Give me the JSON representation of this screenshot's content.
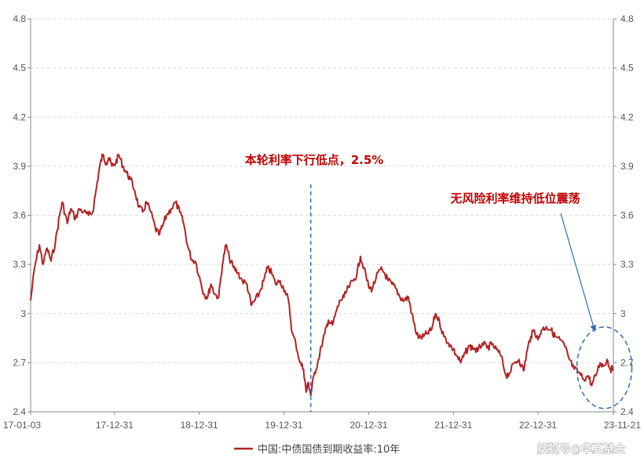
{
  "chart_data": {
    "type": "line",
    "title": "",
    "xlabel": "",
    "ylabel": "",
    "ylim": [
      2.4,
      4.8
    ],
    "y_ticks": [
      "2.4",
      "2.7",
      "3",
      "3.3",
      "3.6",
      "3.9",
      "4.2",
      "4.5",
      "4.8"
    ],
    "y_tick_values": [
      2.4,
      2.7,
      3.0,
      3.3,
      3.6,
      3.9,
      4.2,
      4.5,
      4.8
    ],
    "xlim": [
      "2017-01-03",
      "2023-11-21"
    ],
    "x_ticks": [
      {
        "label": "17-01-03",
        "date": "2017-01-03"
      },
      {
        "label": "17-12-31",
        "date": "2017-12-31"
      },
      {
        "label": "18-12-31",
        "date": "2018-12-31"
      },
      {
        "label": "19-12-31",
        "date": "2019-12-31"
      },
      {
        "label": "20-12-31",
        "date": "2020-12-31"
      },
      {
        "label": "21-12-31",
        "date": "2021-12-31"
      },
      {
        "label": "22-12-31",
        "date": "2022-12-31"
      },
      {
        "label": "23-11-21",
        "date": "2023-11-21"
      }
    ],
    "grid": true,
    "dual_axis": true,
    "legend": "bottom-center",
    "series": [
      {
        "name": "中国:中债国债到期收益率:10年",
        "color": "#b22222",
        "points": [
          [
            "2017-01-03",
            3.08
          ],
          [
            "2017-01-20",
            3.28
          ],
          [
            "2017-02-10",
            3.42
          ],
          [
            "2017-02-25",
            3.3
          ],
          [
            "2017-03-15",
            3.4
          ],
          [
            "2017-04-01",
            3.32
          ],
          [
            "2017-04-20",
            3.44
          ],
          [
            "2017-05-08",
            3.6
          ],
          [
            "2017-05-20",
            3.68
          ],
          [
            "2017-06-10",
            3.55
          ],
          [
            "2017-06-25",
            3.64
          ],
          [
            "2017-07-15",
            3.58
          ],
          [
            "2017-08-01",
            3.64
          ],
          [
            "2017-08-20",
            3.62
          ],
          [
            "2017-09-10",
            3.6
          ],
          [
            "2017-09-28",
            3.62
          ],
          [
            "2017-10-15",
            3.78
          ],
          [
            "2017-10-28",
            3.9
          ],
          [
            "2017-11-10",
            3.97
          ],
          [
            "2017-11-25",
            3.92
          ],
          [
            "2017-12-05",
            3.95
          ],
          [
            "2017-12-20",
            3.9
          ],
          [
            "2018-01-05",
            3.92
          ],
          [
            "2018-01-18",
            3.97
          ],
          [
            "2018-02-05",
            3.9
          ],
          [
            "2018-02-20",
            3.86
          ],
          [
            "2018-03-10",
            3.82
          ],
          [
            "2018-03-28",
            3.75
          ],
          [
            "2018-04-15",
            3.65
          ],
          [
            "2018-05-01",
            3.62
          ],
          [
            "2018-05-18",
            3.68
          ],
          [
            "2018-06-05",
            3.62
          ],
          [
            "2018-06-25",
            3.52
          ],
          [
            "2018-07-10",
            3.48
          ],
          [
            "2018-07-25",
            3.53
          ],
          [
            "2018-08-12",
            3.6
          ],
          [
            "2018-09-01",
            3.64
          ],
          [
            "2018-09-20",
            3.68
          ],
          [
            "2018-10-08",
            3.62
          ],
          [
            "2018-10-25",
            3.55
          ],
          [
            "2018-11-10",
            3.42
          ],
          [
            "2018-11-28",
            3.33
          ],
          [
            "2018-12-15",
            3.32
          ],
          [
            "2019-01-05",
            3.2
          ],
          [
            "2019-01-20",
            3.12
          ],
          [
            "2019-02-05",
            3.1
          ],
          [
            "2019-02-20",
            3.18
          ],
          [
            "2019-03-08",
            3.12
          ],
          [
            "2019-03-25",
            3.1
          ],
          [
            "2019-04-10",
            3.3
          ],
          [
            "2019-04-25",
            3.42
          ],
          [
            "2019-05-10",
            3.34
          ],
          [
            "2019-05-28",
            3.28
          ],
          [
            "2019-06-15",
            3.25
          ],
          [
            "2019-07-05",
            3.2
          ],
          [
            "2019-07-25",
            3.18
          ],
          [
            "2019-08-12",
            3.05
          ],
          [
            "2019-08-28",
            3.08
          ],
          [
            "2019-09-15",
            3.12
          ],
          [
            "2019-10-05",
            3.2
          ],
          [
            "2019-10-22",
            3.28
          ],
          [
            "2019-11-08",
            3.25
          ],
          [
            "2019-11-25",
            3.18
          ],
          [
            "2019-12-15",
            3.2
          ],
          [
            "2020-01-05",
            3.14
          ],
          [
            "2020-01-20",
            3.08
          ],
          [
            "2020-02-05",
            2.88
          ],
          [
            "2020-02-20",
            2.82
          ],
          [
            "2020-03-10",
            2.7
          ],
          [
            "2020-03-25",
            2.66
          ],
          [
            "2020-04-05",
            2.52
          ],
          [
            "2020-04-15",
            2.58
          ],
          [
            "2020-04-25",
            2.5
          ],
          [
            "2020-05-08",
            2.62
          ],
          [
            "2020-05-25",
            2.7
          ],
          [
            "2020-06-10",
            2.8
          ],
          [
            "2020-06-25",
            2.88
          ],
          [
            "2020-07-10",
            2.96
          ],
          [
            "2020-07-28",
            2.93
          ],
          [
            "2020-08-15",
            3.02
          ],
          [
            "2020-08-30",
            3.08
          ],
          [
            "2020-09-15",
            3.1
          ],
          [
            "2020-10-05",
            3.16
          ],
          [
            "2020-10-25",
            3.2
          ],
          [
            "2020-11-10",
            3.24
          ],
          [
            "2020-11-25",
            3.35
          ],
          [
            "2020-12-10",
            3.28
          ],
          [
            "2020-12-31",
            3.16
          ],
          [
            "2021-01-15",
            3.15
          ],
          [
            "2021-02-01",
            3.22
          ],
          [
            "2021-02-20",
            3.27
          ],
          [
            "2021-03-08",
            3.25
          ],
          [
            "2021-03-25",
            3.2
          ],
          [
            "2021-04-10",
            3.18
          ],
          [
            "2021-04-28",
            3.15
          ],
          [
            "2021-05-15",
            3.1
          ],
          [
            "2021-06-01",
            3.08
          ],
          [
            "2021-06-20",
            3.1
          ],
          [
            "2021-07-05",
            3.0
          ],
          [
            "2021-07-20",
            2.9
          ],
          [
            "2021-08-05",
            2.85
          ],
          [
            "2021-08-25",
            2.86
          ],
          [
            "2021-09-10",
            2.88
          ],
          [
            "2021-09-28",
            2.9
          ],
          [
            "2021-10-15",
            3.0
          ],
          [
            "2021-11-01",
            2.95
          ],
          [
            "2021-11-20",
            2.86
          ],
          [
            "2021-12-10",
            2.82
          ],
          [
            "2021-12-31",
            2.78
          ],
          [
            "2022-01-15",
            2.74
          ],
          [
            "2022-02-01",
            2.7
          ],
          [
            "2022-02-20",
            2.76
          ],
          [
            "2022-03-10",
            2.8
          ],
          [
            "2022-03-28",
            2.79
          ],
          [
            "2022-04-15",
            2.77
          ],
          [
            "2022-05-05",
            2.82
          ],
          [
            "2022-05-25",
            2.79
          ],
          [
            "2022-06-15",
            2.81
          ],
          [
            "2022-07-05",
            2.78
          ],
          [
            "2022-07-25",
            2.74
          ],
          [
            "2022-08-15",
            2.62
          ],
          [
            "2022-09-01",
            2.64
          ],
          [
            "2022-09-20",
            2.7
          ],
          [
            "2022-10-10",
            2.72
          ],
          [
            "2022-10-30",
            2.65
          ],
          [
            "2022-11-15",
            2.78
          ],
          [
            "2022-11-30",
            2.86
          ],
          [
            "2022-12-15",
            2.9
          ],
          [
            "2022-12-31",
            2.84
          ],
          [
            "2023-01-15",
            2.9
          ],
          [
            "2023-02-05",
            2.92
          ],
          [
            "2023-02-25",
            2.9
          ],
          [
            "2023-03-15",
            2.86
          ],
          [
            "2023-04-05",
            2.84
          ],
          [
            "2023-04-25",
            2.8
          ],
          [
            "2023-05-15",
            2.72
          ],
          [
            "2023-06-05",
            2.66
          ],
          [
            "2023-06-25",
            2.64
          ],
          [
            "2023-07-15",
            2.6
          ],
          [
            "2023-08-05",
            2.62
          ],
          [
            "2023-08-20",
            2.56
          ],
          [
            "2023-09-05",
            2.62
          ],
          [
            "2023-09-25",
            2.7
          ],
          [
            "2023-10-10",
            2.68
          ],
          [
            "2023-10-25",
            2.72
          ],
          [
            "2023-11-08",
            2.66
          ],
          [
            "2023-11-21",
            2.66
          ]
        ]
      }
    ],
    "annotations": [
      {
        "text": "本轮利率下行低点，2.5%",
        "date": "2020-04-25",
        "value": 2.5,
        "style": "vertical-dashed-line"
      },
      {
        "text": "无风险利率维持低位震荡",
        "date": "2023-08-20",
        "value": 2.65,
        "style": "ellipse-with-arrow"
      }
    ],
    "colors": {
      "series": "#b22222",
      "annotation_text": "#c00000",
      "annotation_marks": "#2e6db4",
      "grid": "#dcdcdc"
    }
  },
  "watermark": "搜狐号@华夏基金"
}
